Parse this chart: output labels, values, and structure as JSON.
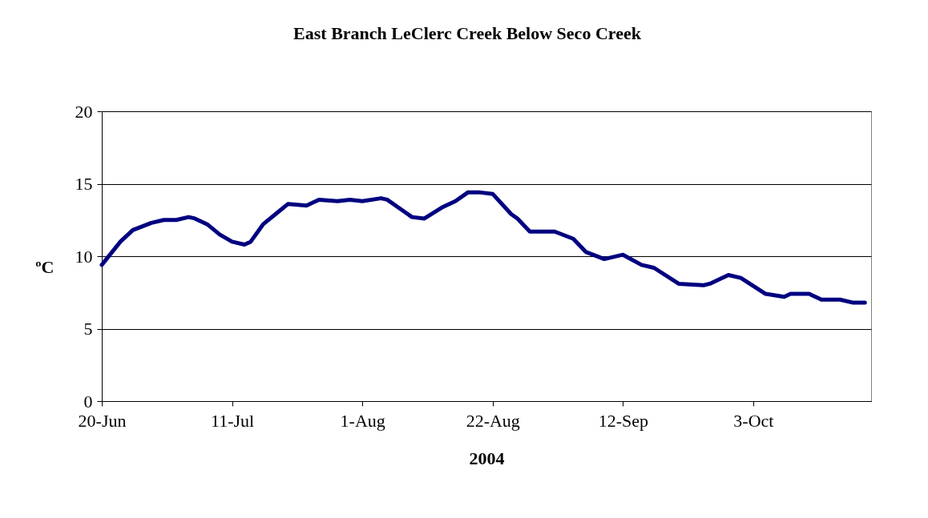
{
  "chart_data": {
    "type": "line",
    "title": "East Branch LeClerc Creek Below Seco Creek",
    "xlabel": "2004",
    "ylabel": "ºC",
    "x": [
      "2004-06-20",
      "2004-06-23",
      "2004-06-25",
      "2004-06-28",
      "2004-06-30",
      "2004-07-02",
      "2004-07-04",
      "2004-07-05",
      "2004-07-07",
      "2004-07-09",
      "2004-07-11",
      "2004-07-13",
      "2004-07-14",
      "2004-07-16",
      "2004-07-18",
      "2004-07-20",
      "2004-07-23",
      "2004-07-25",
      "2004-07-28",
      "2004-07-30",
      "2004-08-01",
      "2004-08-04",
      "2004-08-05",
      "2004-08-07",
      "2004-08-09",
      "2004-08-11",
      "2004-08-14",
      "2004-08-16",
      "2004-08-18",
      "2004-08-20",
      "2004-08-22",
      "2004-08-25",
      "2004-08-26",
      "2004-08-28",
      "2004-09-01",
      "2004-09-04",
      "2004-09-06",
      "2004-09-09",
      "2004-09-12",
      "2004-09-15",
      "2004-09-17",
      "2004-09-21",
      "2004-09-25",
      "2004-09-26",
      "2004-09-29",
      "2004-10-01",
      "2004-10-05",
      "2004-10-08",
      "2004-10-09",
      "2004-10-12",
      "2004-10-14",
      "2004-10-17",
      "2004-10-19",
      "2004-10-21"
    ],
    "series": [
      {
        "color": "#000080",
        "values": [
          9.4,
          11.0,
          11.8,
          12.3,
          12.5,
          12.5,
          12.7,
          12.6,
          12.2,
          11.5,
          11.0,
          10.8,
          11.0,
          12.2,
          12.9,
          13.6,
          13.5,
          13.9,
          13.8,
          13.9,
          13.8,
          14.0,
          13.9,
          13.3,
          12.7,
          12.6,
          13.4,
          13.8,
          14.4,
          14.4,
          14.3,
          12.9,
          12.6,
          11.7,
          11.7,
          11.2,
          10.3,
          9.8,
          10.1,
          9.4,
          9.2,
          8.1,
          8.0,
          8.1,
          8.7,
          8.5,
          7.4,
          7.2,
          7.4,
          7.4,
          7.0,
          7.0,
          6.8,
          6.8
        ]
      }
    ],
    "xlim": [
      "2004-06-20",
      "2004-10-22"
    ],
    "xticks": [
      {
        "value": "2004-06-20",
        "label": "20-Jun"
      },
      {
        "value": "2004-07-11",
        "label": "11-Jul"
      },
      {
        "value": "2004-08-01",
        "label": "1-Aug"
      },
      {
        "value": "2004-08-22",
        "label": "22-Aug"
      },
      {
        "value": "2004-09-12",
        "label": "12-Sep"
      },
      {
        "value": "2004-10-03",
        "label": "3-Oct"
      }
    ],
    "ylim": [
      0,
      20
    ],
    "yticks": [
      0,
      5,
      10,
      15,
      20
    ],
    "grid": "y",
    "line_style": "solid",
    "marker": "none"
  }
}
